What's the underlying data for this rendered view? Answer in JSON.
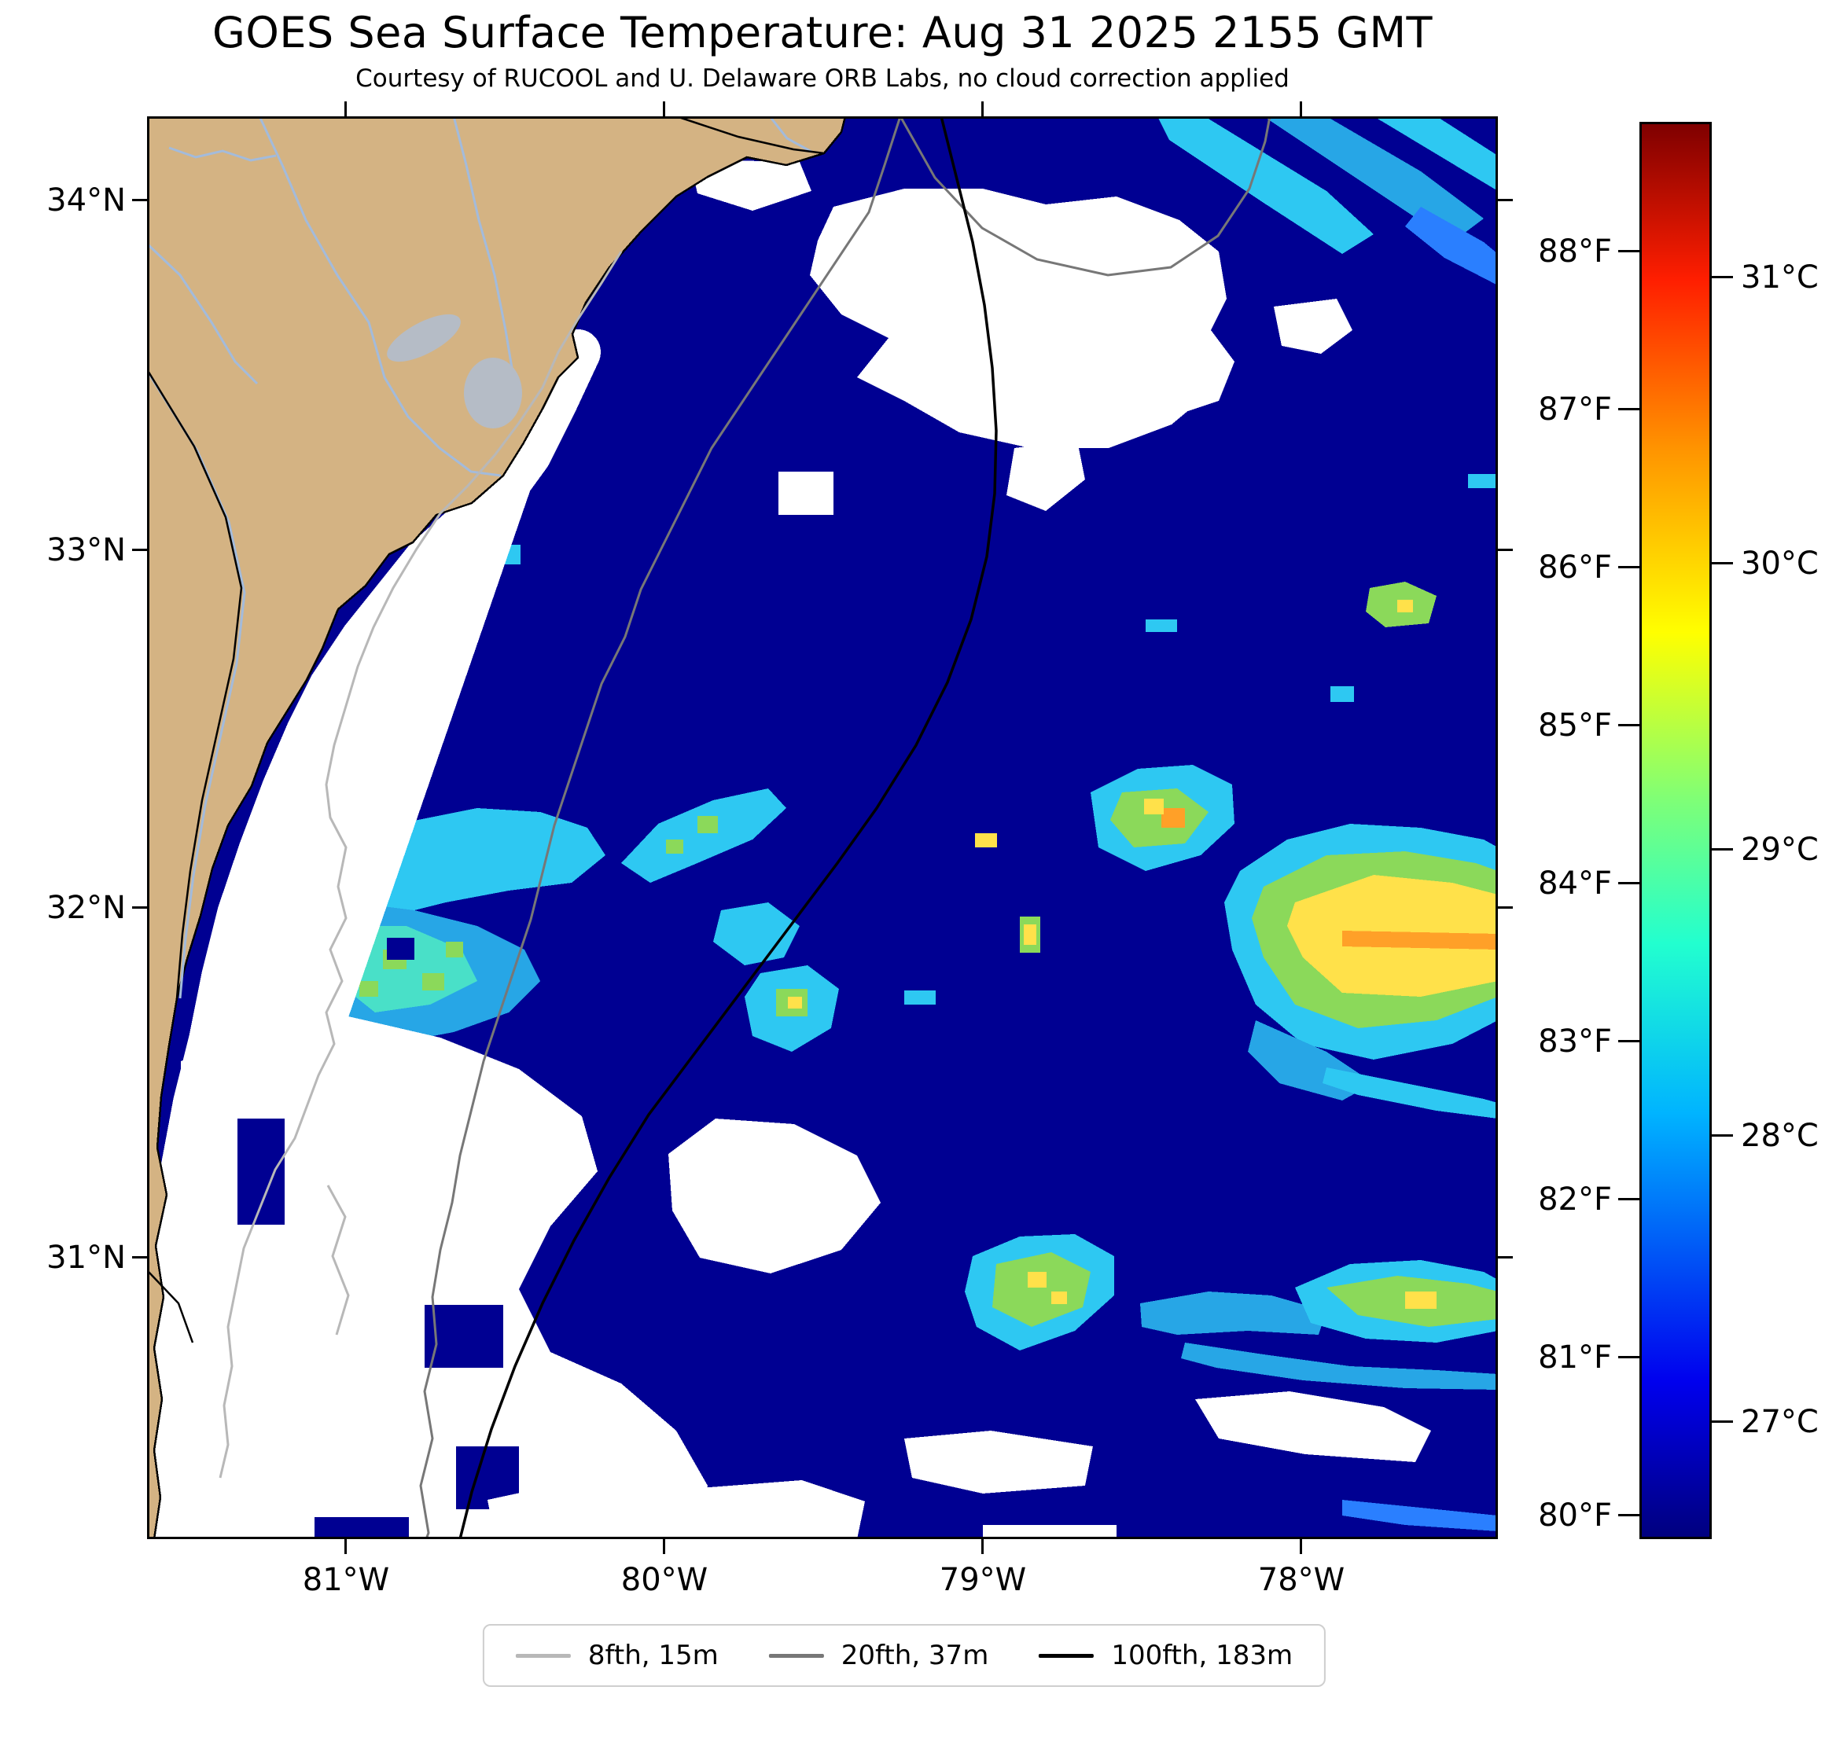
{
  "title": "GOES Sea Surface Temperature: Aug 31 2025 2155 GMT",
  "subtitle": "Courtesy of RUCOOL and U. Delaware ORB Labs, no cloud correction applied",
  "axes": {
    "lat": [
      "34°N",
      "33°N",
      "32°N",
      "31°N"
    ],
    "lon": [
      "81°W",
      "80°W",
      "79°W",
      "78°W"
    ]
  },
  "colorbar": {
    "f": [
      "88°F",
      "87°F",
      "86°F",
      "85°F",
      "84°F",
      "83°F",
      "82°F",
      "81°F",
      "80°F"
    ],
    "c": [
      "31°C",
      "30°C",
      "29°C",
      "28°C",
      "27°C"
    ],
    "gradient": [
      "#00007f 0%",
      "#0000ee 11%",
      "#00b4ff 30%",
      "#22ffcf 42%",
      "#7dff78 52%",
      "#ffff00 64%",
      "#ff9400 77%",
      "#ff1e00 89%",
      "#7f0000 100%"
    ]
  },
  "legend": {
    "items": [
      {
        "label": "8fth, 15m",
        "color": "#b8b8b8"
      },
      {
        "label": "20fth, 37m",
        "color": "#777777"
      },
      {
        "label": "100fth, 183m",
        "color": "#000000"
      }
    ]
  },
  "colors": {
    "land": "#d4b383",
    "ocean": "#000092",
    "cloud": "#ffffff",
    "river": "#a3bbdb",
    "lake": "#b5bcc6",
    "contour8": "#b8b8b8",
    "contour20": "#777777",
    "contour100": "#000000",
    "p_blue": "#2a7fff",
    "p_cyan": "#2ec8f2",
    "p_cyan2": "#27a6e6",
    "p_teal": "#49e0c8",
    "p_green": "#8bd95a",
    "p_yellow": "#ffe14a",
    "p_orange": "#ffa028"
  }
}
